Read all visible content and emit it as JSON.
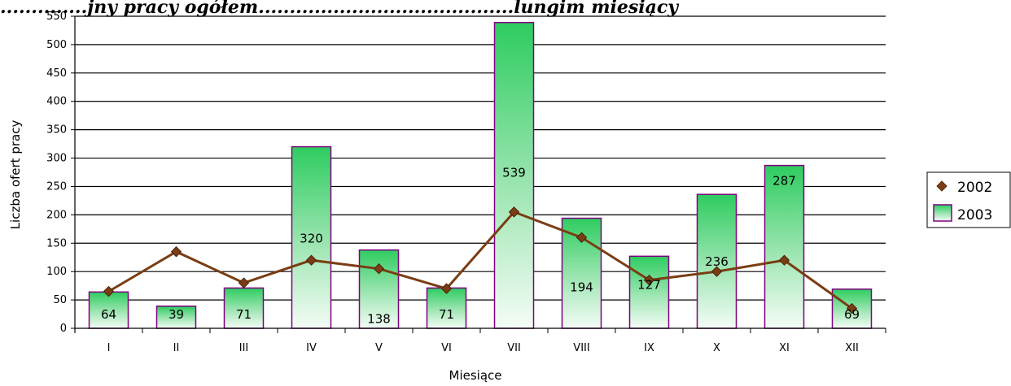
{
  "page": {
    "title_fragment": "..............jny pracy  ogółem.........................................lungim miesiący"
  },
  "chart_data": {
    "type": "bar",
    "categories": [
      "I",
      "II",
      "III",
      "IV",
      "V",
      "VI",
      "VII",
      "VIII",
      "IX",
      "X",
      "XI",
      "XII"
    ],
    "series": [
      {
        "name": "2003",
        "type": "bar",
        "values": [
          64,
          39,
          71,
          320,
          138,
          71,
          539,
          194,
          127,
          236,
          287,
          69
        ],
        "color": "#2ecc60"
      },
      {
        "name": "2002",
        "type": "line",
        "values": [
          65,
          135,
          80,
          120,
          105,
          70,
          205,
          160,
          85,
          100,
          120,
          35
        ],
        "color": "#7a3d14"
      }
    ],
    "data_labels": [
      "64",
      "39",
      "71",
      "320",
      "138",
      "71",
      "539",
      "194",
      "127",
      "236",
      "287",
      "69"
    ],
    "xlabel": "Miesiące",
    "ylabel": "Liczba ofert pracy",
    "ylim": [
      0,
      550
    ],
    "yticks": [
      0,
      50,
      100,
      150,
      200,
      250,
      300,
      350,
      400,
      450,
      500,
      550
    ],
    "grid": "horizontal",
    "legend_position": "right",
    "legend": [
      "2002",
      "2003"
    ]
  }
}
